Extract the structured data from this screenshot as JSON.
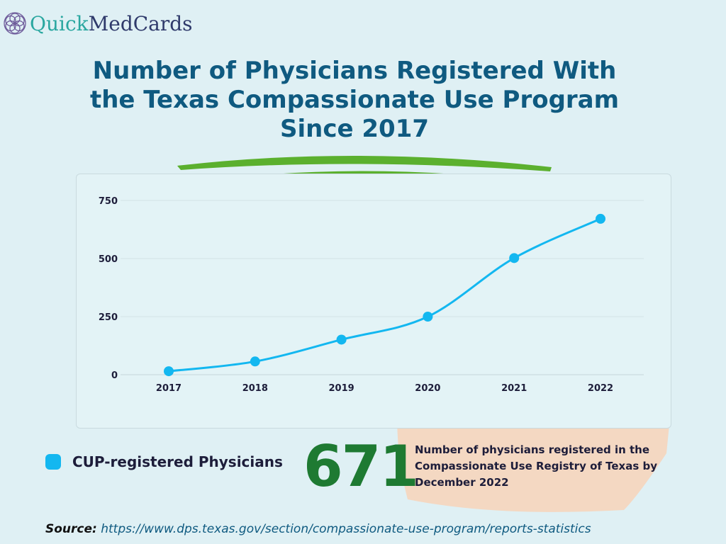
{
  "logo": {
    "part1": "Quick",
    "part2": "MedCards"
  },
  "title": "Number of Physicians Registered With the Texas Compassionate Use Program Since 2017",
  "chart_data": {
    "type": "line",
    "categories": [
      "2017",
      "2018",
      "2019",
      "2020",
      "2021",
      "2022"
    ],
    "series": [
      {
        "name": "CUP-registered Physicians",
        "values": [
          15,
          57,
          151,
          250,
          502,
          671
        ],
        "color": "#13b7f0"
      }
    ],
    "ylim": [
      0,
      750
    ],
    "yticks": [
      0,
      250,
      500,
      750
    ],
    "grid": true,
    "legend": "bottom-left"
  },
  "legend_label": "CUP-registered Physicians",
  "highlight": {
    "value": "671",
    "text": "Number of physicians registered in the Compassionate Use Registry of Texas by December 2022"
  },
  "source": {
    "label": "Source:",
    "url": "https://www.dps.texas.gov/section/compassionate-use-program/reports-statistics"
  }
}
